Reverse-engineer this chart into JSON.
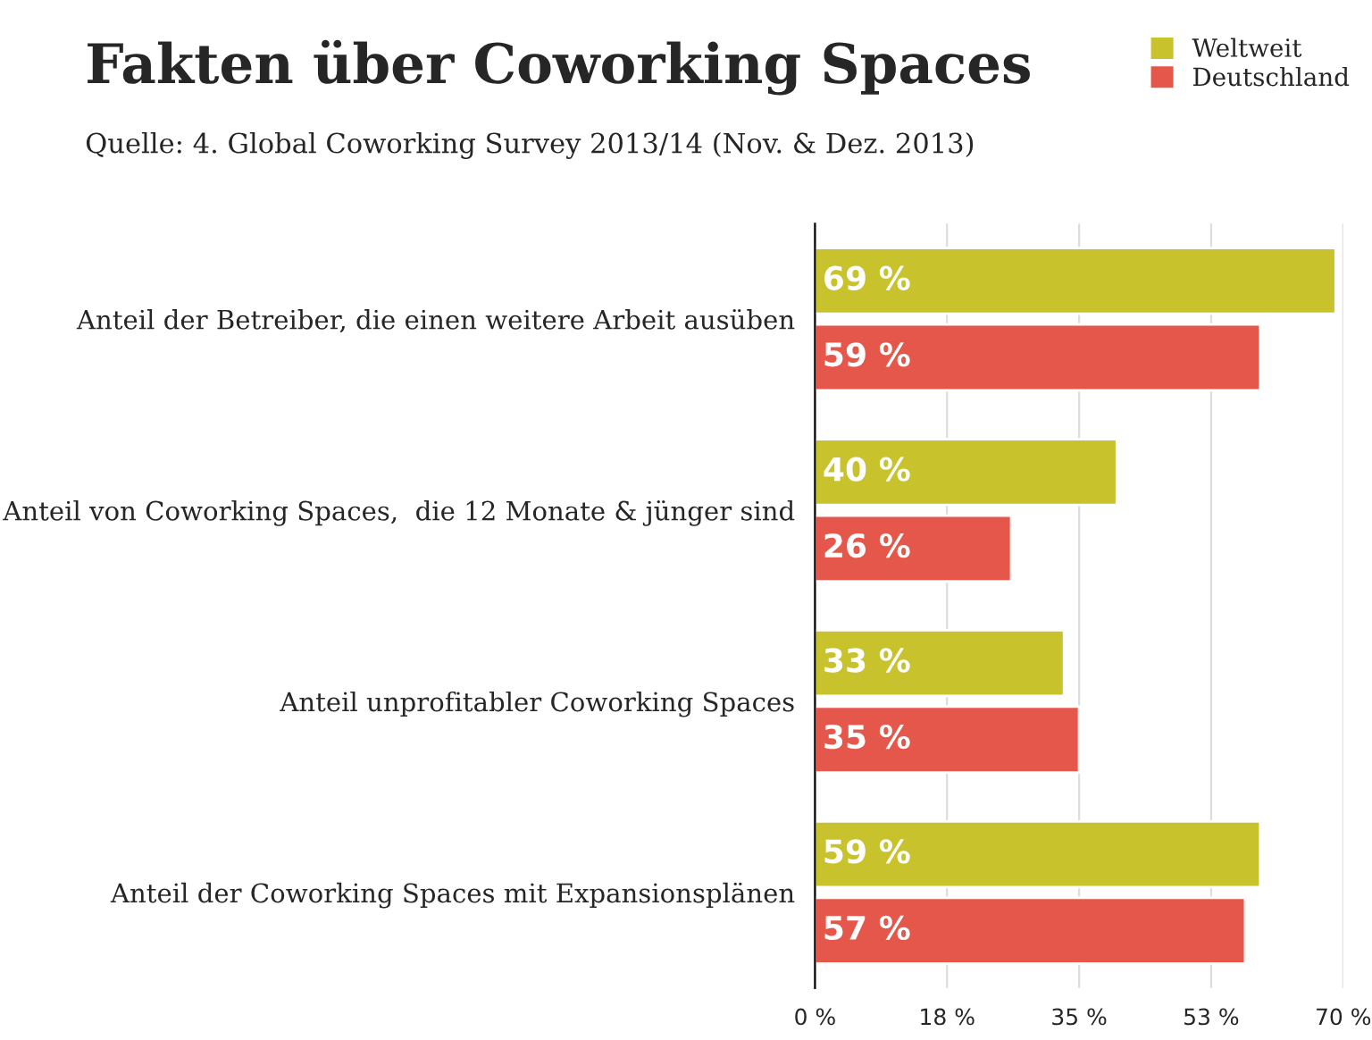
{
  "chart_data": {
    "type": "bar",
    "orientation": "horizontal",
    "title": "Fakten über Coworking Spaces",
    "subtitle": "Quelle: 4. Global Coworking Survey 2013/14 (Nov. & Dez. 2013)",
    "categories": [
      "Anteil der Betreiber, die einen weitere Arbeit ausüben",
      "Anteil von Coworking Spaces,  die 12 Monate & jünger sind",
      "Anteil unprofitabler Coworking Spaces",
      "Anteil der Coworking Spaces mit Expansionsplänen"
    ],
    "series": [
      {
        "name": "Weltweit",
        "color": "#c8c22c",
        "values": [
          69,
          40,
          33,
          59
        ],
        "value_labels": [
          "69 %",
          "40 %",
          "33 %",
          "59 %"
        ]
      },
      {
        "name": "Deutschland",
        "color": "#e5574a",
        "values": [
          59,
          26,
          35,
          57
        ],
        "value_labels": [
          "59 %",
          "26 %",
          "35 %",
          "57 %"
        ]
      }
    ],
    "xlim": [
      0,
      70
    ],
    "xticks": [
      {
        "value": 0,
        "label": "0 %"
      },
      {
        "value": 17.5,
        "label": "18 %"
      },
      {
        "value": 35,
        "label": "35 %"
      },
      {
        "value": 52.5,
        "label": "53 %"
      },
      {
        "value": 70,
        "label": "70 %"
      }
    ],
    "grid": "x",
    "legend": "top right"
  }
}
